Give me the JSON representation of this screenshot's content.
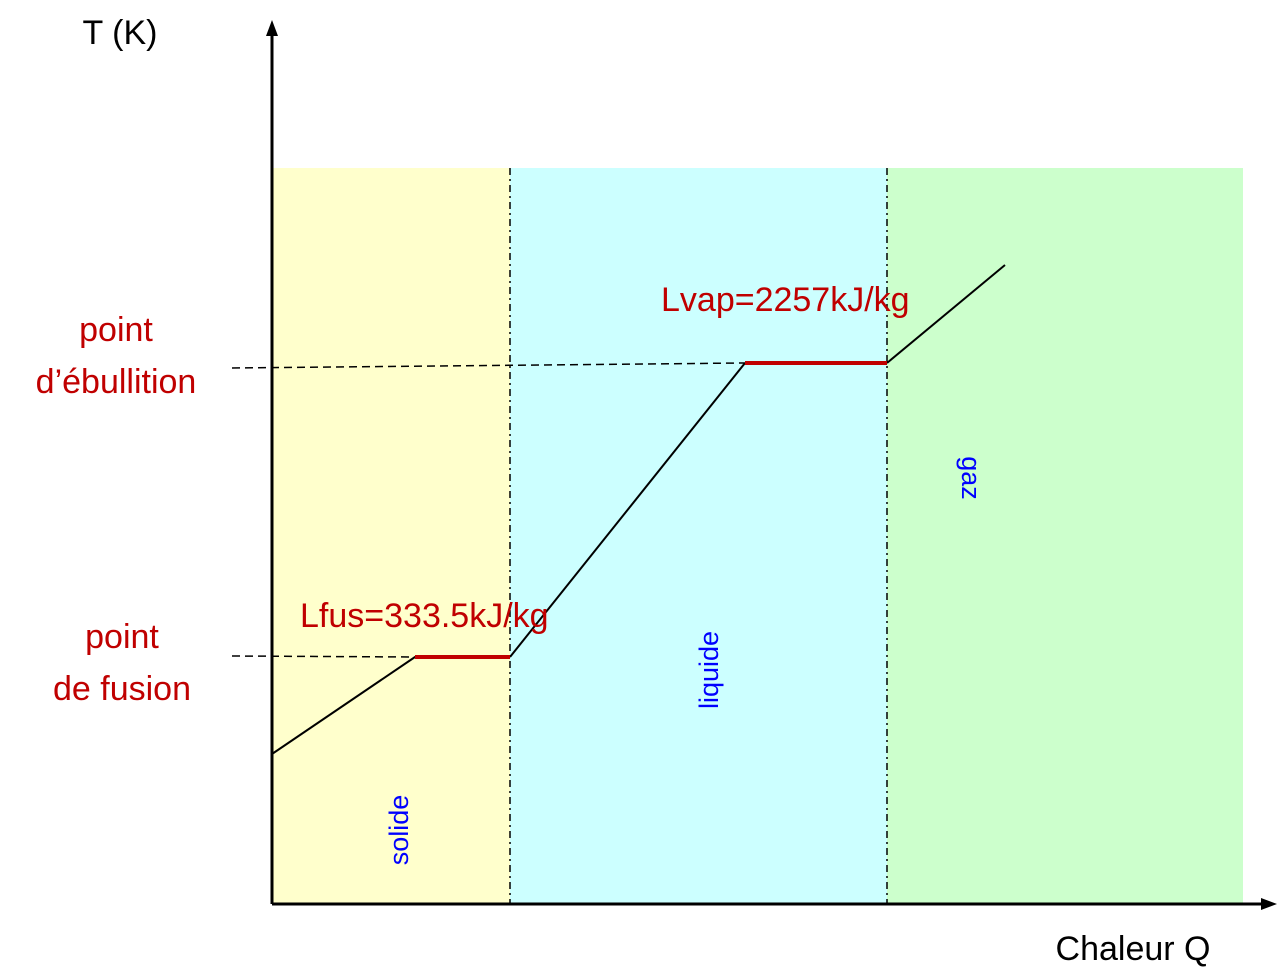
{
  "axes": {
    "y_label": "T (K)",
    "x_label": "Chaleur Q"
  },
  "levels": {
    "ebullition": {
      "line1": "point",
      "line2": "d’ébullition"
    },
    "fusion": {
      "line1": "point",
      "line2": "de fusion"
    }
  },
  "latent_heats": {
    "fusion": "Lfus=333.5kJ/kg",
    "vaporisation": "Lvap=2257kJ/kg"
  },
  "phases": [
    {
      "key": "solide",
      "label": "solide",
      "color": "#FFFFCC"
    },
    {
      "key": "liquide",
      "label": "liquide",
      "color": "#CCFFFF"
    },
    {
      "key": "gaz",
      "label": "gaz",
      "color": "#CCFFCC"
    }
  ],
  "colors": {
    "annotation_red": "#C00000",
    "phase_text_blue": "#0000FF",
    "curve": "#000000",
    "plateau": "#C00000"
  }
}
